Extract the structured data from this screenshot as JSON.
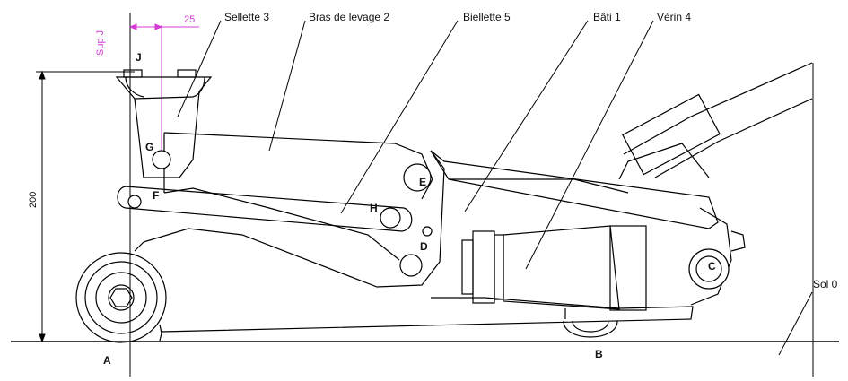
{
  "parts": {
    "sellette": "Sellette 3",
    "bras": "Bras de levage 2",
    "biellette": "Biellette 5",
    "bati": "Bâti 1",
    "verin": "Vérin 4",
    "sol": "Sol 0"
  },
  "points": {
    "A": "A",
    "B": "B",
    "C": "C",
    "D": "D",
    "E": "E",
    "F": "F",
    "G": "G",
    "H": "H",
    "J": "J"
  },
  "dimensions": {
    "height": "200",
    "offset": "25",
    "sup_j": "Sup J"
  },
  "colors": {
    "line": "#000000",
    "annotation": "#d43cd4"
  }
}
